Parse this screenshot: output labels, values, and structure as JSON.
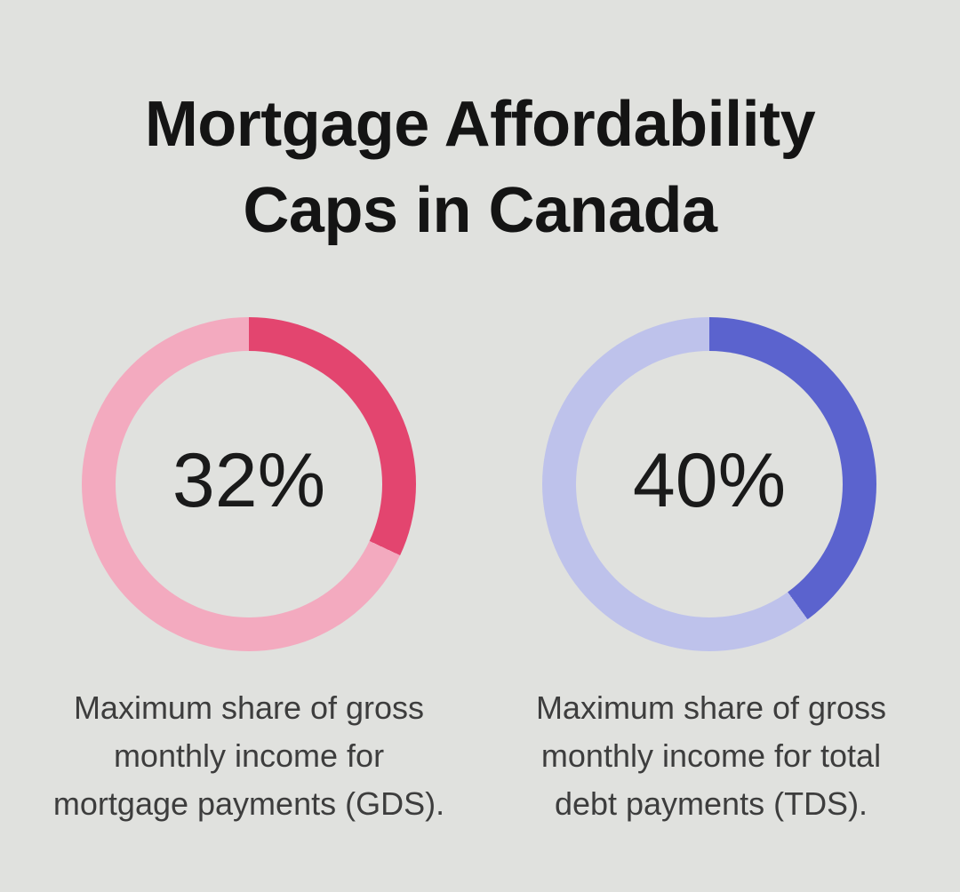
{
  "page": {
    "background_color": "#e0e1de",
    "title_color": "#141414",
    "caption_color": "#3d3d3d"
  },
  "title": {
    "line1": "Mortgage Affordability",
    "line2": "Caps in Canada",
    "full": "Mortgage Affordability Caps in Canada"
  },
  "chart_data": [
    {
      "type": "pie",
      "variant": "donut",
      "name": "GDS cap",
      "value_pct": 32,
      "center_label": "32%",
      "start_angle_deg": 0,
      "direction": "clockwise",
      "colors": {
        "filled": "#e3456f",
        "remainder": "#f3aabf"
      },
      "caption": {
        "full": "Maximum share of gross monthly income for mortgage payments (GDS).",
        "lines": [
          "Maximum share of gross",
          "monthly income for",
          "mortgage payments (GDS)."
        ]
      }
    },
    {
      "type": "pie",
      "variant": "donut",
      "name": "TDS cap",
      "value_pct": 40,
      "center_label": "40%",
      "start_angle_deg": 0,
      "direction": "clockwise",
      "colors": {
        "filled": "#5b63ce",
        "remainder": "#bec2eb"
      },
      "caption": {
        "full": "Maximum share of gross monthly income for total debt payments (TDS).",
        "lines": [
          "Maximum share of gross",
          "monthly income for total",
          "debt payments (TDS)."
        ]
      }
    }
  ]
}
